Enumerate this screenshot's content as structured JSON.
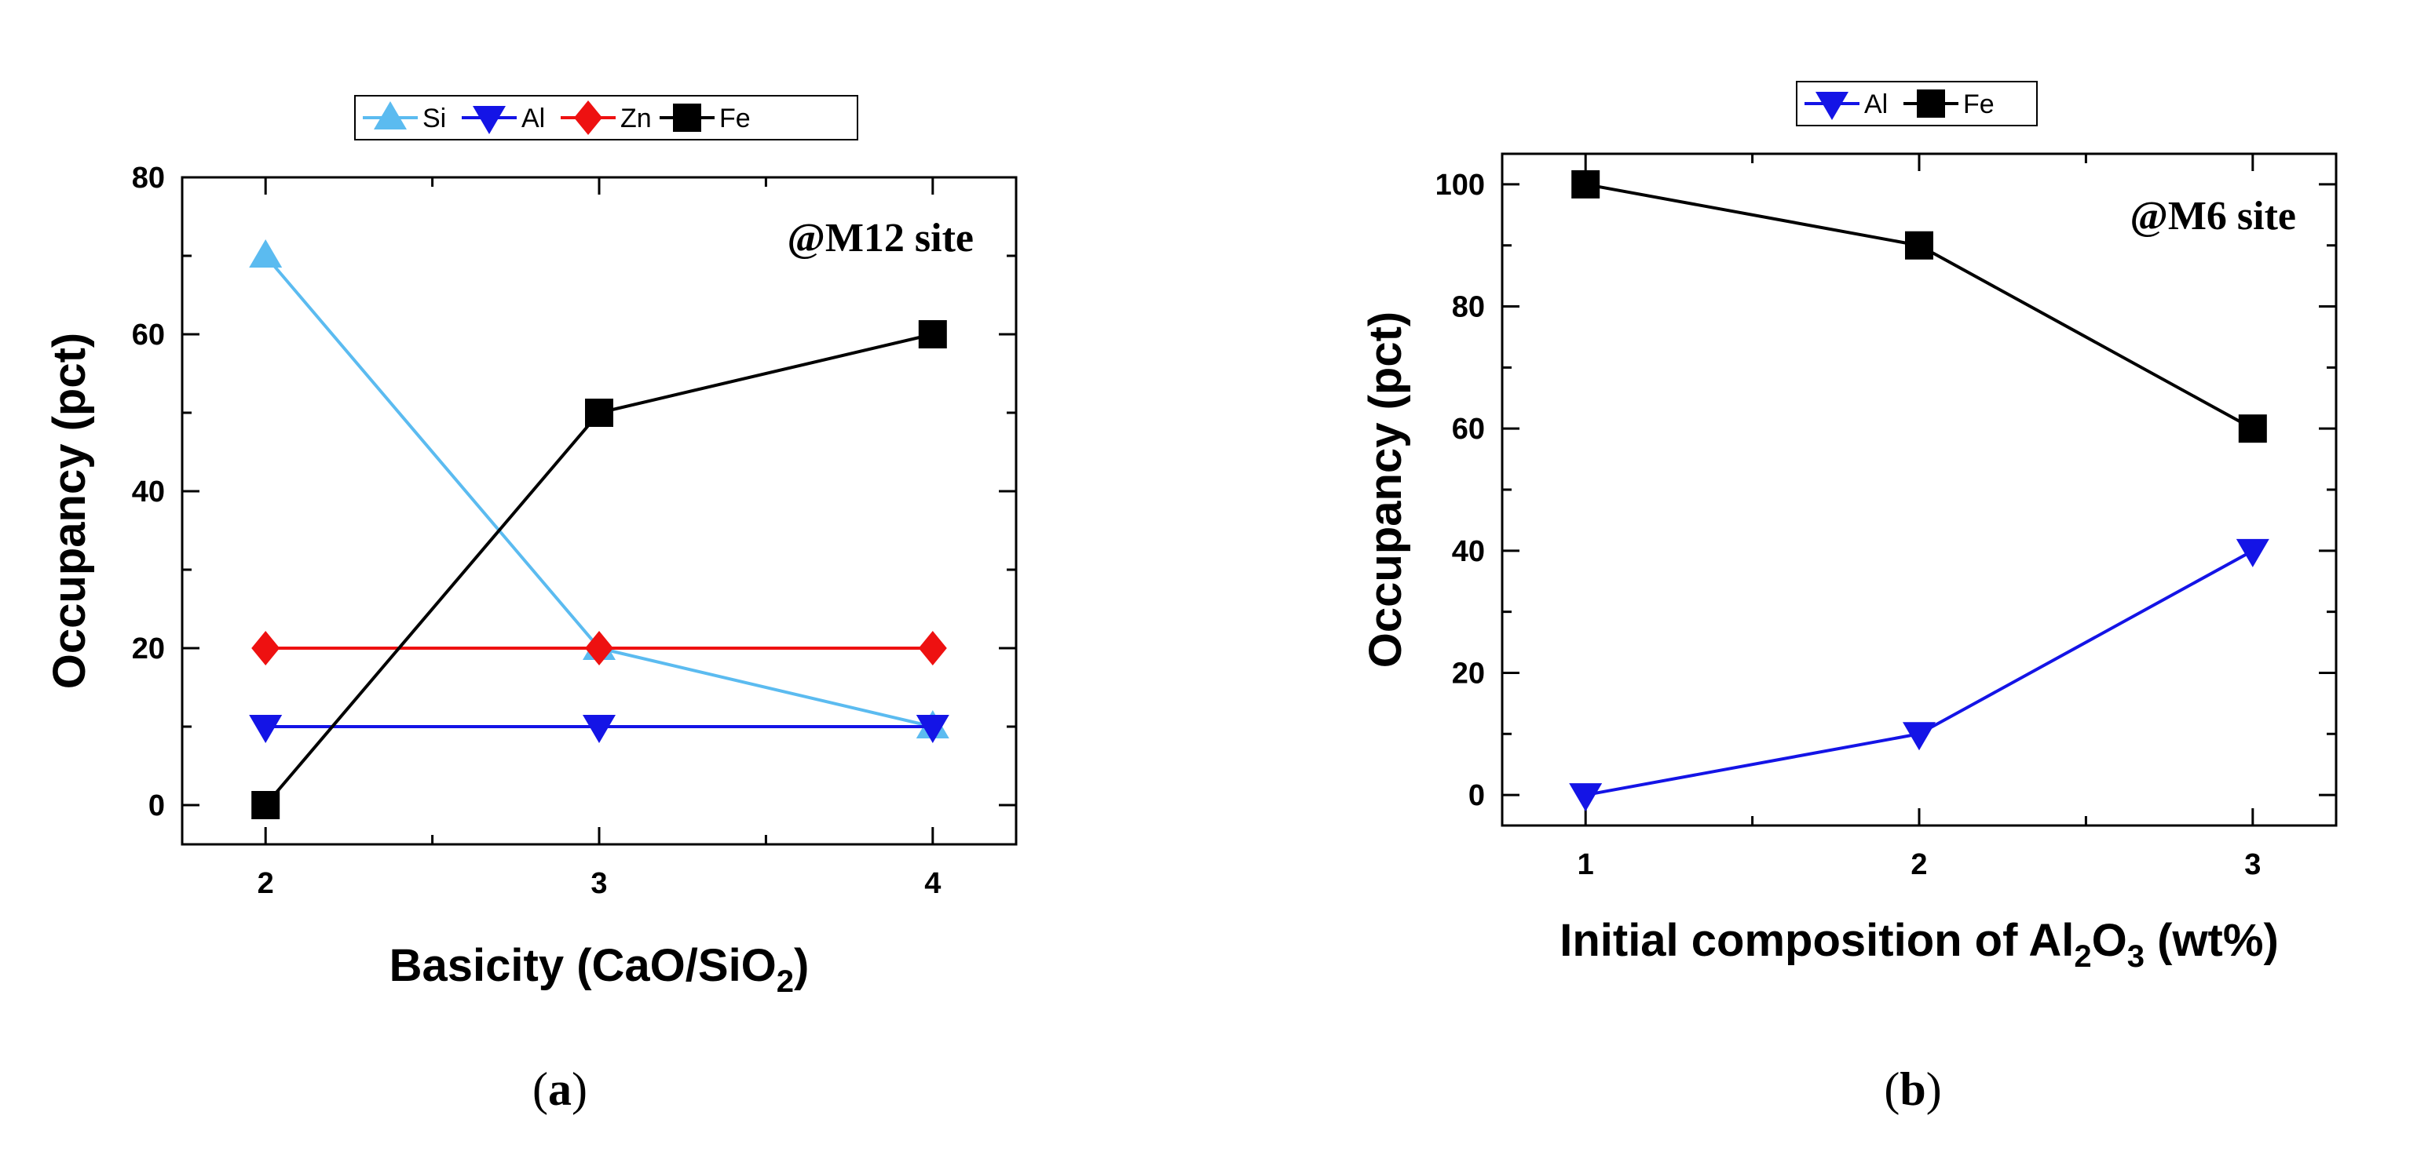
{
  "chart_data": [
    {
      "type": "line",
      "panel": "a",
      "caption_letter": "a",
      "annotation": "@M12 site",
      "xlabel_main": "Basicity (CaO/SiO",
      "xlabel_sub": "2",
      "xlabel_tail": ")",
      "ylabel": "Occupancy (pct)",
      "x": [
        2,
        3,
        4
      ],
      "x_ticks": [
        "2",
        "3",
        "4"
      ],
      "xlim": [
        1.75,
        4.25
      ],
      "ylim": [
        -5,
        80
      ],
      "y_ticks": [
        0,
        20,
        40,
        60,
        80
      ],
      "y_tick_labels": [
        "0",
        "20",
        "40",
        "60",
        "80"
      ],
      "grid": false,
      "legend_position": "top",
      "series": [
        {
          "name": "Si",
          "values": [
            70,
            20,
            10
          ],
          "color": "#5bbbf0",
          "marker": "triangle-up"
        },
        {
          "name": "Al",
          "values": [
            10,
            10,
            10
          ],
          "color": "#1414e6",
          "marker": "triangle-down"
        },
        {
          "name": "Zn",
          "values": [
            20,
            20,
            20
          ],
          "color": "#ee1111",
          "marker": "diamond"
        },
        {
          "name": "Fe",
          "values": [
            0,
            50,
            60
          ],
          "color": "#000000",
          "marker": "square"
        }
      ]
    },
    {
      "type": "line",
      "panel": "b",
      "caption_letter": "b",
      "annotation": "@M6 site",
      "xlabel_main": "Initial composition of Al",
      "xlabel_sub": "2",
      "xlabel_mid": "O",
      "xlabel_sub2": "3",
      "xlabel_tail": " (wt%)",
      "ylabel": "Occupancy (pct)",
      "x": [
        1,
        2,
        3
      ],
      "x_ticks": [
        "1",
        "2",
        "3"
      ],
      "xlim": [
        0.75,
        3.25
      ],
      "ylim": [
        -5,
        105
      ],
      "y_ticks": [
        0,
        20,
        40,
        60,
        80,
        100
      ],
      "y_tick_labels": [
        "0",
        "20",
        "40",
        "60",
        "80",
        "100"
      ],
      "grid": false,
      "legend_position": "top",
      "series": [
        {
          "name": "Al",
          "values": [
            0,
            10,
            40
          ],
          "color": "#1414e6",
          "marker": "triangle-down"
        },
        {
          "name": "Fe",
          "values": [
            100,
            90,
            60
          ],
          "color": "#000000",
          "marker": "square"
        }
      ]
    }
  ]
}
